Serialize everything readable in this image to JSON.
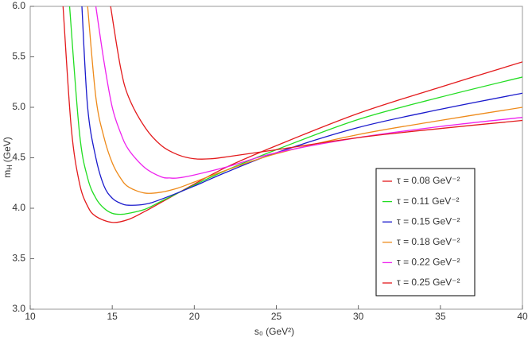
{
  "chart_data": {
    "type": "line",
    "xlabel": "s₀ (GeV²)",
    "ylabel": {
      "symbol": "m",
      "subscript": "H",
      "unit": "(GeV)"
    },
    "xlim": [
      10,
      40
    ],
    "ylim": [
      3.0,
      6.0
    ],
    "xticks": [
      10,
      15,
      20,
      25,
      30,
      35,
      40
    ],
    "yticks": [
      {
        "value": 3.0,
        "label": "3.0"
      },
      {
        "value": 3.5,
        "label": "3.5"
      },
      {
        "value": 4.0,
        "label": "4.0"
      },
      {
        "value": 4.5,
        "label": "4.5"
      },
      {
        "value": 5.0,
        "label": "5.0"
      },
      {
        "value": 5.5,
        "label": "5.5"
      },
      {
        "value": 6.0,
        "label": "6.0"
      }
    ],
    "legend": "lower-right",
    "series": [
      {
        "name": "τ = 0.08 GeV⁻²",
        "color": "#e31a1c",
        "x": [
          12.0,
          12.5,
          13,
          13.5,
          14,
          15,
          16,
          17,
          18,
          20,
          22,
          25,
          30,
          35,
          40
        ],
        "values": [
          6.0,
          4.8,
          4.25,
          4.02,
          3.92,
          3.86,
          3.89,
          3.97,
          4.06,
          4.24,
          4.41,
          4.62,
          4.94,
          5.2,
          5.45
        ]
      },
      {
        "name": "τ = 0.11 GeV⁻²",
        "color": "#22dd22",
        "x": [
          12.4,
          13,
          13.5,
          14,
          14.5,
          15,
          15.5,
          16,
          17,
          18,
          20,
          22,
          25,
          30,
          35,
          40
        ],
        "values": [
          6.0,
          4.75,
          4.3,
          4.1,
          4.0,
          3.95,
          3.94,
          3.95,
          3.99,
          4.07,
          4.23,
          4.38,
          4.58,
          4.88,
          5.1,
          5.3
        ]
      },
      {
        "name": "τ = 0.15 GeV⁻²",
        "color": "#1a1acc",
        "x": [
          13.15,
          13.5,
          14,
          14.5,
          15,
          15.5,
          16,
          17,
          18,
          20,
          22,
          25,
          30,
          35,
          40
        ],
        "values": [
          6.0,
          5.0,
          4.5,
          4.22,
          4.1,
          4.05,
          4.03,
          4.04,
          4.09,
          4.22,
          4.36,
          4.55,
          4.8,
          4.98,
          5.14
        ]
      },
      {
        "name": "τ = 0.18 GeV⁻²",
        "color": "#ee8a1a",
        "x": [
          13.5,
          14,
          14.5,
          15,
          15.5,
          16,
          17,
          18,
          19,
          20,
          22,
          25,
          30,
          35,
          40
        ],
        "values": [
          6.0,
          5.1,
          4.7,
          4.45,
          4.3,
          4.21,
          4.15,
          4.16,
          4.2,
          4.26,
          4.38,
          4.54,
          4.73,
          4.87,
          5.0
        ]
      },
      {
        "name": "τ = 0.22 GeV⁻²",
        "color": "#ee22ee",
        "x": [
          14.0,
          14.5,
          15,
          15.5,
          16,
          17,
          18,
          18.5,
          19,
          20,
          22,
          25,
          30,
          35,
          40
        ],
        "values": [
          6.0,
          5.45,
          5.0,
          4.75,
          4.58,
          4.4,
          4.31,
          4.3,
          4.3,
          4.33,
          4.41,
          4.55,
          4.7,
          4.81,
          4.9
        ]
      },
      {
        "name": "τ = 0.25 GeV⁻²",
        "color": "#e31a1c",
        "x": [
          14.9,
          15.5,
          16,
          17,
          18,
          19,
          20,
          21,
          22,
          25,
          30,
          35,
          40
        ],
        "values": [
          6.0,
          5.4,
          5.1,
          4.8,
          4.62,
          4.53,
          4.49,
          4.49,
          4.51,
          4.58,
          4.7,
          4.79,
          4.87
        ]
      }
    ]
  }
}
